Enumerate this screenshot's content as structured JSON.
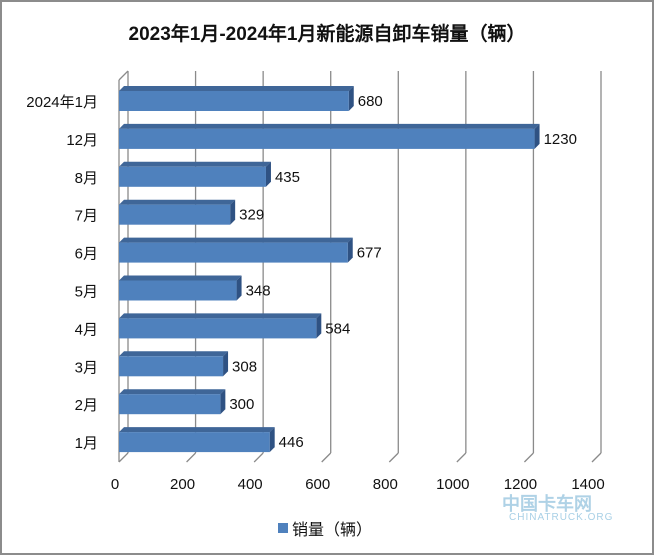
{
  "chart_data": {
    "type": "bar",
    "orientation": "horizontal",
    "title": "2023年1月-2024年1月新能源自卸车销量（辆）",
    "categories": [
      "2024年1月",
      "12月",
      "8月",
      "7月",
      "6月",
      "5月",
      "4月",
      "3月",
      "2月",
      "1月"
    ],
    "series": [
      {
        "name": "销量（辆）",
        "values": [
          680,
          1230,
          435,
          329,
          677,
          348,
          584,
          308,
          300,
          446
        ]
      }
    ],
    "xlim": [
      0,
      1400
    ],
    "xticks": [
      0,
      200,
      400,
      600,
      800,
      1000,
      1200,
      1400
    ],
    "grid": true,
    "legend": "bottom",
    "color": "#4f81bd"
  },
  "watermark": {
    "name": "中国卡车网",
    "sub": "CHINATRUCK.ORG"
  }
}
